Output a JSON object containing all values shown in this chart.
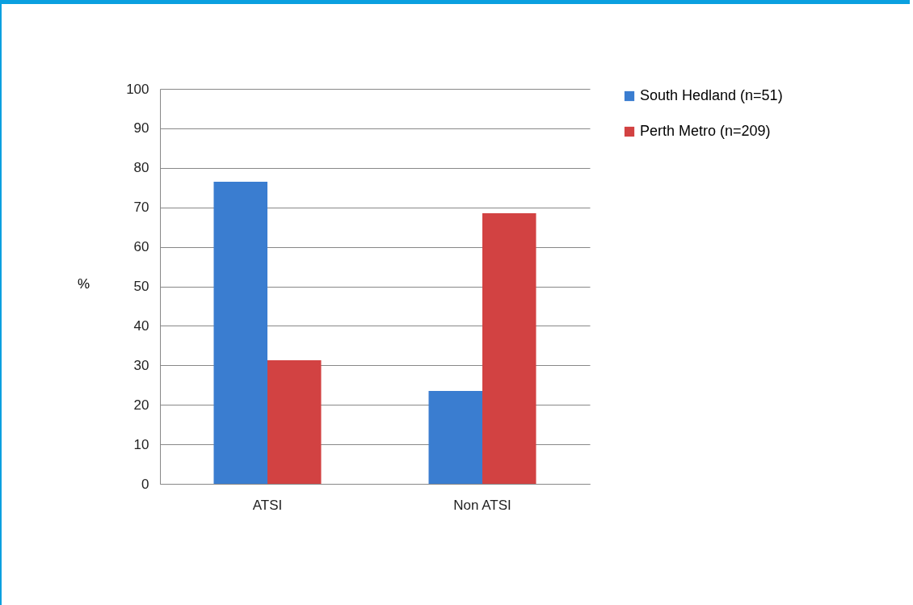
{
  "chart_data": {
    "type": "bar",
    "ylabel": "%",
    "categories": [
      "ATSI",
      "Non ATSI"
    ],
    "series": [
      {
        "name": "South Hedland (n=51)",
        "color": "#3a7dd0",
        "values": [
          76.5,
          23.5
        ]
      },
      {
        "name": "Perth Metro (n=209)",
        "color": "#d24242",
        "values": [
          31.3,
          68.5
        ]
      }
    ],
    "ylim": [
      0,
      100
    ],
    "yticks": [
      0,
      10,
      20,
      30,
      40,
      50,
      60,
      70,
      80,
      90,
      100
    ],
    "grid": "y",
    "legend": "right"
  }
}
